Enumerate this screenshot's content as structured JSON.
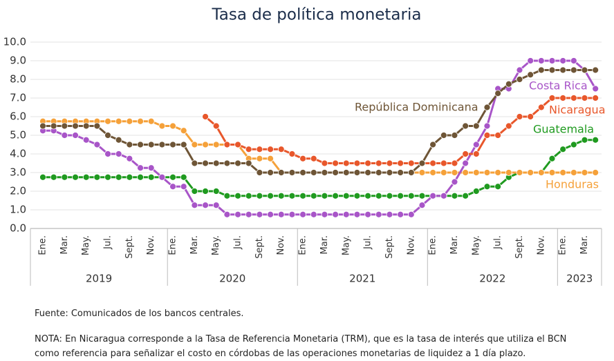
{
  "chart_data": {
    "type": "line",
    "title": "Tasa de política monetaria",
    "categories": [
      "Ene.",
      null,
      "Mar.",
      null,
      "May.",
      null,
      "Jul.",
      null,
      "Sept.",
      null,
      "Nov.",
      null,
      "Ene.",
      null,
      "Mar.",
      null,
      "May.",
      null,
      "Jul.",
      null,
      "Sept.",
      null,
      "Nov.",
      null,
      "Ene.",
      null,
      "Mar.",
      null,
      "May.",
      null,
      "Jul.",
      null,
      "Sept.",
      null,
      "Nov.",
      null,
      "Ene.",
      null,
      "Mar.",
      null,
      "May.",
      null,
      "Jul.",
      null,
      "Sept.",
      null,
      "Nov.",
      null,
      "Ene.",
      null,
      "Mar.",
      null
    ],
    "years": [
      "2019",
      "2020",
      "2021",
      "2022",
      "2023"
    ],
    "ylim": [
      0,
      10
    ],
    "yticks": [
      {
        "value": 0,
        "label": "0.0"
      },
      {
        "value": 1,
        "label": "1.0"
      },
      {
        "value": 2,
        "label": "2.0"
      },
      {
        "value": 3,
        "label": "3.0"
      },
      {
        "value": 4,
        "label": "4.0"
      },
      {
        "value": 5,
        "label": "5.0"
      },
      {
        "value": 6,
        "label": "6.0"
      },
      {
        "value": 7,
        "label": "7.0"
      },
      {
        "value": 8,
        "label": "8.0"
      },
      {
        "value": 9,
        "label": "9.0"
      },
      {
        "value": 10,
        "label": "10.0"
      }
    ],
    "grid": true,
    "series": [
      {
        "name": "Guatemala",
        "color": "#1f9a1f",
        "values": [
          2.75,
          2.75,
          2.75,
          2.75,
          2.75,
          2.75,
          2.75,
          2.75,
          2.75,
          2.75,
          2.75,
          2.75,
          2.75,
          2.75,
          2,
          2,
          2,
          1.75,
          1.75,
          1.75,
          1.75,
          1.75,
          1.75,
          1.75,
          1.75,
          1.75,
          1.75,
          1.75,
          1.75,
          1.75,
          1.75,
          1.75,
          1.75,
          1.75,
          1.75,
          1.75,
          1.75,
          1.75,
          1.75,
          1.75,
          2,
          2.25,
          2.25,
          2.75,
          3,
          3,
          3,
          3.75,
          4.25,
          4.5,
          4.75,
          4.75
        ]
      },
      {
        "name": "Honduras",
        "color": "#f5a13a",
        "values": [
          5.75,
          5.75,
          5.75,
          5.75,
          5.75,
          5.75,
          5.75,
          5.75,
          5.75,
          5.75,
          5.75,
          5.5,
          5.5,
          5.25,
          4.5,
          4.5,
          4.5,
          4.5,
          4.5,
          3.75,
          3.75,
          3.75,
          3,
          3,
          3,
          3,
          3,
          3,
          3,
          3,
          3,
          3,
          3,
          3,
          3,
          3,
          3,
          3,
          3,
          3,
          3,
          3,
          3,
          3,
          3,
          3,
          3,
          3,
          3,
          3,
          3,
          3
        ]
      },
      {
        "name": "Costa Rica",
        "color": "#a855c8",
        "values": [
          5.25,
          5.25,
          5,
          5,
          4.75,
          4.5,
          4,
          4,
          3.75,
          3.25,
          3.25,
          2.75,
          2.25,
          2.25,
          1.25,
          1.25,
          1.25,
          0.75,
          0.75,
          0.75,
          0.75,
          0.75,
          0.75,
          0.75,
          0.75,
          0.75,
          0.75,
          0.75,
          0.75,
          0.75,
          0.75,
          0.75,
          0.75,
          0.75,
          0.75,
          1.25,
          1.75,
          1.75,
          2.5,
          3.5,
          4.5,
          5.5,
          7.5,
          7.5,
          8.5,
          9,
          9,
          9,
          9,
          9,
          8.5,
          7.5
        ]
      },
      {
        "name": "Nicaragua",
        "color": "#e8572b",
        "values": [
          null,
          null,
          null,
          null,
          null,
          null,
          null,
          null,
          null,
          null,
          null,
          null,
          null,
          null,
          null,
          6,
          5.5,
          4.5,
          4.5,
          4.25,
          4.25,
          4.25,
          4.25,
          4,
          3.75,
          3.75,
          3.5,
          3.5,
          3.5,
          3.5,
          3.5,
          3.5,
          3.5,
          3.5,
          3.5,
          3.5,
          3.5,
          3.5,
          3.5,
          4,
          4,
          5,
          5,
          5.5,
          6,
          6,
          6.5,
          7,
          7,
          7,
          7,
          7
        ]
      },
      {
        "name": "República Dominicana",
        "color": "#6e5536",
        "values": [
          5.5,
          5.5,
          5.5,
          5.5,
          5.5,
          5.5,
          5,
          4.75,
          4.5,
          4.5,
          4.5,
          4.5,
          4.5,
          4.5,
          3.5,
          3.5,
          3.5,
          3.5,
          3.5,
          3.5,
          3,
          3,
          3,
          3,
          3,
          3,
          3,
          3,
          3,
          3,
          3,
          3,
          3,
          3,
          3,
          3.5,
          4.5,
          5,
          5,
          5.5,
          5.5,
          6.5,
          7.25,
          7.75,
          8,
          8.25,
          8.5,
          8.5,
          8.5,
          8.5,
          8.5,
          8.5
        ]
      }
    ],
    "source": "Fuente: Comunicados de los bancos centrales.",
    "note": "NOTA: En Nicaragua corresponde a la Tasa de Referencia Monetaria (TRM), que es la tasa de interés que utiliza el BCN como referencia para señalizar el costo en córdobas de las operaciones monetarias de liquidez a 1 día plazo."
  }
}
